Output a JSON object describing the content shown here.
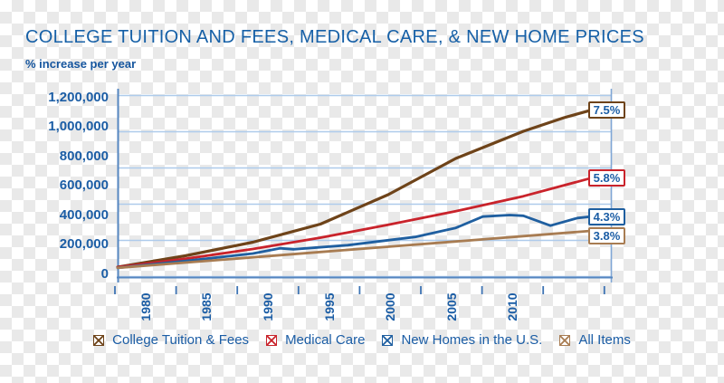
{
  "title": "COLLEGE TUITION AND FEES, MEDICAL CARE, & NEW HOME PRICES",
  "subtitle": "% increase per year",
  "colors": {
    "title_text": "#1660A7",
    "axis_text": "#1B5DA5",
    "gridline": "#AECBEB",
    "axis_line": "#5586C0",
    "right_axis_line": "#7FA6D6",
    "tick": "#3E74B4",
    "badge_bg": "#FFFFFF",
    "badge_text": "#1B5DA5"
  },
  "chart_data": {
    "type": "line",
    "title": "COLLEGE TUITION AND FEES, MEDICAL CARE, & NEW HOME PRICES",
    "subtitle": "% increase per year",
    "ylabel_ticks": [
      "1,200,000",
      "1,000,000",
      "800,000",
      "600,000",
      "400,000",
      "200,000",
      "0"
    ],
    "xlabel_ticks": [
      "1980",
      "1985",
      "1990",
      "1995",
      "2000",
      "2005",
      "2010"
    ],
    "xlim": [
      1978,
      2013
    ],
    "ylim": [
      0,
      1200000
    ],
    "grid": "horizontal-only",
    "legend_position": "bottom",
    "series": [
      {
        "name": "College Tuition & Fees",
        "color": "#6E4319",
        "annual_increase_label": "7.5%",
        "points": [
          [
            1978,
            60000
          ],
          [
            1983,
            135000
          ],
          [
            1988,
            225000
          ],
          [
            1993,
            345000
          ],
          [
            1998,
            540000
          ],
          [
            2003,
            780000
          ],
          [
            2008,
            960000
          ],
          [
            2011,
            1050000
          ],
          [
            2013,
            1100000
          ]
        ]
      },
      {
        "name": "Medical Care",
        "color": "#C9232B",
        "annual_increase_label": "5.8%",
        "points": [
          [
            1978,
            60000
          ],
          [
            1983,
            115000
          ],
          [
            1988,
            180000
          ],
          [
            1993,
            255000
          ],
          [
            1998,
            340000
          ],
          [
            2003,
            430000
          ],
          [
            2008,
            530000
          ],
          [
            2013,
            650000
          ]
        ]
      },
      {
        "name": "New Homes in the U.S.",
        "color": "#1F5FA0",
        "annual_increase_label": "4.3%",
        "points": [
          [
            1978,
            55000
          ],
          [
            1983,
            100000
          ],
          [
            1988,
            150000
          ],
          [
            1990,
            185000
          ],
          [
            1991,
            178000
          ],
          [
            1995,
            205000
          ],
          [
            2000,
            260000
          ],
          [
            2003,
            320000
          ],
          [
            2005,
            395000
          ],
          [
            2007,
            405000
          ],
          [
            2008,
            400000
          ],
          [
            2010,
            335000
          ],
          [
            2012,
            385000
          ],
          [
            2013,
            395000
          ]
        ]
      },
      {
        "name": "All Items",
        "color": "#A87C52",
        "annual_increase_label": "3.8%",
        "points": [
          [
            1978,
            55000
          ],
          [
            1983,
            90000
          ],
          [
            1988,
            125000
          ],
          [
            1993,
            160000
          ],
          [
            1998,
            195000
          ],
          [
            2003,
            230000
          ],
          [
            2008,
            265000
          ],
          [
            2013,
            300000
          ]
        ]
      }
    ]
  }
}
